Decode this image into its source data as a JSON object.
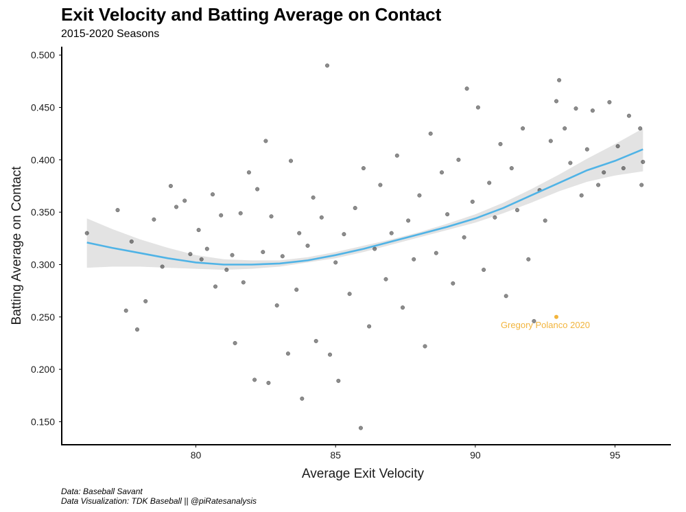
{
  "chart_data": {
    "type": "scatter",
    "title": "Exit Velocity and Batting Average on Contact",
    "subtitle": "2015-2020 Seasons",
    "xlabel": "Average Exit Velocity",
    "ylabel": "Batting Average on Contact",
    "xlim": [
      75.2,
      97.0
    ],
    "ylim": [
      0.128,
      0.508
    ],
    "xticks": [
      80,
      85,
      90,
      95
    ],
    "xtick_labels": [
      "80",
      "85",
      "90",
      "95"
    ],
    "yticks": [
      0.15,
      0.2,
      0.25,
      0.3,
      0.35,
      0.4,
      0.45,
      0.5
    ],
    "ytick_labels": [
      "0.150",
      "0.200",
      "0.250",
      "0.300",
      "0.350",
      "0.400",
      "0.450",
      "0.500"
    ],
    "grid": false,
    "point_color": "#000000",
    "point_opacity": 0.45,
    "points": [
      [
        76.1,
        0.33
      ],
      [
        77.2,
        0.352
      ],
      [
        77.5,
        0.256
      ],
      [
        77.7,
        0.322
      ],
      [
        77.9,
        0.238
      ],
      [
        78.2,
        0.265
      ],
      [
        78.5,
        0.343
      ],
      [
        78.8,
        0.298
      ],
      [
        79.1,
        0.375
      ],
      [
        79.3,
        0.355
      ],
      [
        79.6,
        0.361
      ],
      [
        79.8,
        0.31
      ],
      [
        80.1,
        0.333
      ],
      [
        80.2,
        0.305
      ],
      [
        80.4,
        0.315
      ],
      [
        80.6,
        0.367
      ],
      [
        80.7,
        0.279
      ],
      [
        80.9,
        0.347
      ],
      [
        81.1,
        0.295
      ],
      [
        81.3,
        0.309
      ],
      [
        81.4,
        0.225
      ],
      [
        81.6,
        0.349
      ],
      [
        81.7,
        0.283
      ],
      [
        81.9,
        0.388
      ],
      [
        82.1,
        0.19
      ],
      [
        82.2,
        0.372
      ],
      [
        82.4,
        0.312
      ],
      [
        82.5,
        0.418
      ],
      [
        82.6,
        0.187
      ],
      [
        82.7,
        0.346
      ],
      [
        82.9,
        0.261
      ],
      [
        83.1,
        0.308
      ],
      [
        83.3,
        0.215
      ],
      [
        83.4,
        0.399
      ],
      [
        83.6,
        0.276
      ],
      [
        83.7,
        0.33
      ],
      [
        83.8,
        0.172
      ],
      [
        84.0,
        0.318
      ],
      [
        84.2,
        0.364
      ],
      [
        84.3,
        0.227
      ],
      [
        84.5,
        0.345
      ],
      [
        84.7,
        0.49
      ],
      [
        84.8,
        0.214
      ],
      [
        85.0,
        0.302
      ],
      [
        85.1,
        0.189
      ],
      [
        85.3,
        0.329
      ],
      [
        85.5,
        0.272
      ],
      [
        85.7,
        0.354
      ],
      [
        85.9,
        0.144
      ],
      [
        86.0,
        0.392
      ],
      [
        86.2,
        0.241
      ],
      [
        86.4,
        0.315
      ],
      [
        86.6,
        0.376
      ],
      [
        86.8,
        0.286
      ],
      [
        87.0,
        0.33
      ],
      [
        87.2,
        0.404
      ],
      [
        87.4,
        0.259
      ],
      [
        87.6,
        0.342
      ],
      [
        87.8,
        0.305
      ],
      [
        88.0,
        0.366
      ],
      [
        88.2,
        0.222
      ],
      [
        88.4,
        0.425
      ],
      [
        88.6,
        0.311
      ],
      [
        88.8,
        0.388
      ],
      [
        89.0,
        0.348
      ],
      [
        89.2,
        0.282
      ],
      [
        89.4,
        0.4
      ],
      [
        89.6,
        0.326
      ],
      [
        89.7,
        0.468
      ],
      [
        89.9,
        0.36
      ],
      [
        90.1,
        0.45
      ],
      [
        90.3,
        0.295
      ],
      [
        90.5,
        0.378
      ],
      [
        90.7,
        0.345
      ],
      [
        90.9,
        0.415
      ],
      [
        91.1,
        0.27
      ],
      [
        91.3,
        0.392
      ],
      [
        91.5,
        0.352
      ],
      [
        91.7,
        0.43
      ],
      [
        91.9,
        0.305
      ],
      [
        92.1,
        0.246
      ],
      [
        92.3,
        0.371
      ],
      [
        92.5,
        0.342
      ],
      [
        92.7,
        0.418
      ],
      [
        92.9,
        0.456
      ],
      [
        93.0,
        0.476
      ],
      [
        93.2,
        0.43
      ],
      [
        93.4,
        0.397
      ],
      [
        93.6,
        0.449
      ],
      [
        93.8,
        0.366
      ],
      [
        94.0,
        0.41
      ],
      [
        94.2,
        0.447
      ],
      [
        94.4,
        0.376
      ],
      [
        94.6,
        0.388
      ],
      [
        94.8,
        0.455
      ],
      [
        95.1,
        0.413
      ],
      [
        95.3,
        0.392
      ],
      [
        95.5,
        0.442
      ],
      [
        95.9,
        0.43
      ],
      [
        95.95,
        0.376
      ],
      [
        96.0,
        0.398
      ]
    ],
    "trend_line": {
      "color": "#4fb3e6",
      "x": [
        76.1,
        77,
        78,
        79,
        80,
        81,
        82,
        83,
        84,
        85,
        86,
        87,
        88,
        89,
        90,
        91,
        92,
        93,
        94,
        95,
        96
      ],
      "y": [
        0.321,
        0.316,
        0.311,
        0.306,
        0.302,
        0.3,
        0.3,
        0.301,
        0.304,
        0.309,
        0.315,
        0.322,
        0.329,
        0.336,
        0.344,
        0.354,
        0.366,
        0.378,
        0.39,
        0.399,
        0.41
      ],
      "upper": [
        0.344,
        0.334,
        0.324,
        0.316,
        0.309,
        0.305,
        0.304,
        0.304,
        0.307,
        0.312,
        0.318,
        0.324,
        0.331,
        0.339,
        0.348,
        0.359,
        0.372,
        0.386,
        0.401,
        0.415,
        0.43
      ],
      "lower": [
        0.297,
        0.298,
        0.298,
        0.297,
        0.296,
        0.295,
        0.296,
        0.298,
        0.302,
        0.306,
        0.312,
        0.319,
        0.326,
        0.333,
        0.34,
        0.349,
        0.359,
        0.37,
        0.379,
        0.385,
        0.389
      ],
      "band_color": "#e3e3e3"
    },
    "highlight": {
      "label": "Gregory Polanco 2020",
      "x": 92.9,
      "y": 0.25,
      "color": "#f2b43c"
    }
  },
  "captions": [
    "Data: Baseball Savant",
    "Data Visualization: TDK Baseball || @piRatesanalysis"
  ]
}
